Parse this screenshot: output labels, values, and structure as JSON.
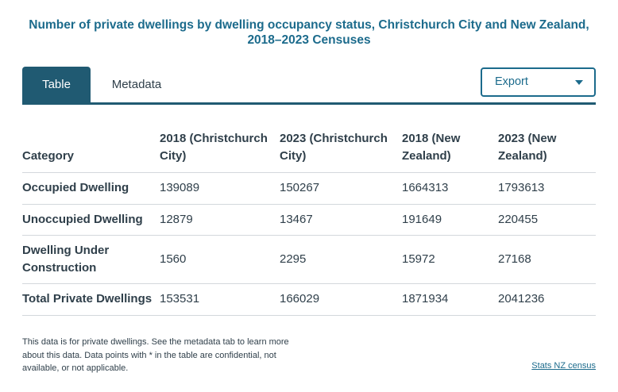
{
  "title": "Number of private dwellings by dwelling occupancy status, Christchurch City and New Zealand, 2018–2023 Censuses",
  "tabs": [
    {
      "label": "Table",
      "active": true
    },
    {
      "label": "Metadata",
      "active": false
    }
  ],
  "export": {
    "label": "Export"
  },
  "chart_data": {
    "type": "table",
    "title": "Number of private dwellings by dwelling occupancy status, Christchurch City and New Zealand, 2018–2023 Censuses",
    "columns": [
      "Category",
      "2018 (Christchurch City)",
      "2023 (Christchurch City)",
      "2018 (New Zealand)",
      "2023 (New Zealand)"
    ],
    "rows": [
      [
        "Occupied Dwelling",
        "139089",
        "150267",
        "1664313",
        "1793613"
      ],
      [
        "Unoccupied Dwelling",
        "12879",
        "13467",
        "191649",
        "220455"
      ],
      [
        "Dwelling Under Construction",
        "1560",
        "2295",
        "15972",
        "27168"
      ],
      [
        "Total Private Dwellings",
        "153531",
        "166029",
        "1871934",
        "2041236"
      ]
    ]
  },
  "footnote": "This data is for private dwellings. See the metadata tab to learn more about this data. Data points with * in the table are confidential, not available, or not applicable.",
  "source_link": "Stats NZ census",
  "colors": {
    "accent": "#1c6b8c",
    "tab_active": "#205a72",
    "text": "#2f3f4a",
    "divider": "#d3d8dc"
  }
}
